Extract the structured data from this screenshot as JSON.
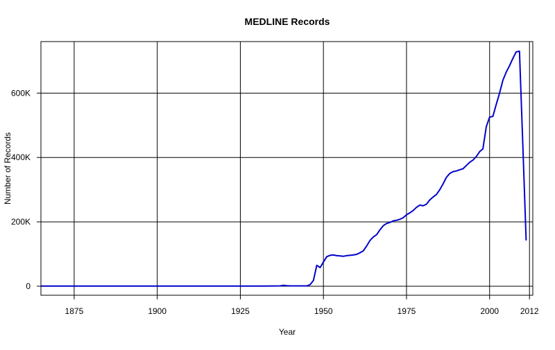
{
  "chart_data": {
    "type": "line",
    "title": "MEDLINE Records",
    "xlabel": "Year",
    "ylabel": "Number of Records",
    "xlim": [
      1865,
      2013
    ],
    "ylim": [
      -28000,
      760000
    ],
    "x_ticks": [
      1875,
      1900,
      1925,
      1950,
      1975,
      2000,
      2012
    ],
    "x_tick_labels": [
      "1875",
      "1900",
      "1925",
      "1950",
      "1975",
      "2000",
      "2012"
    ],
    "y_ticks": [
      0,
      200000,
      400000,
      600000
    ],
    "y_tick_labels": [
      "0",
      "200K",
      "400K",
      "600K"
    ],
    "grid": true,
    "legend": false,
    "series": [
      {
        "color": "#0000cc",
        "x": [
          1865,
          1870,
          1880,
          1890,
          1900,
          1910,
          1920,
          1930,
          1937,
          1938,
          1939,
          1940,
          1945,
          1946,
          1947,
          1948,
          1949,
          1950,
          1951,
          1952,
          1953,
          1954,
          1955,
          1956,
          1957,
          1958,
          1959,
          1960,
          1961,
          1962,
          1963,
          1964,
          1965,
          1966,
          1967,
          1968,
          1969,
          1970,
          1971,
          1972,
          1973,
          1974,
          1975,
          1976,
          1977,
          1978,
          1979,
          1980,
          1981,
          1982,
          1983,
          1984,
          1985,
          1986,
          1987,
          1988,
          1989,
          1990,
          1991,
          1992,
          1993,
          1994,
          1995,
          1996,
          1997,
          1998,
          1999,
          2000,
          2001,
          2002,
          2003,
          2004,
          2005,
          2006,
          2007,
          2008,
          2009,
          2010,
          2011
        ],
        "y": [
          500,
          500,
          500,
          500,
          500,
          500,
          500,
          500,
          1000,
          3000,
          1500,
          1000,
          1000,
          5000,
          18000,
          65000,
          58000,
          75000,
          92000,
          96000,
          97000,
          95000,
          94000,
          93000,
          95000,
          96000,
          97000,
          99000,
          104000,
          110000,
          125000,
          142000,
          153000,
          160000,
          175000,
          188000,
          195000,
          198000,
          203000,
          205000,
          208000,
          213000,
          222000,
          228000,
          235000,
          245000,
          252000,
          250000,
          255000,
          268000,
          277000,
          285000,
          300000,
          318000,
          338000,
          350000,
          356000,
          358000,
          362000,
          365000,
          375000,
          385000,
          392000,
          403000,
          418000,
          427000,
          495000,
          525000,
          528000,
          565000,
          600000,
          640000,
          665000,
          685000,
          708000,
          728000,
          730000,
          440000,
          142000
        ]
      }
    ]
  }
}
